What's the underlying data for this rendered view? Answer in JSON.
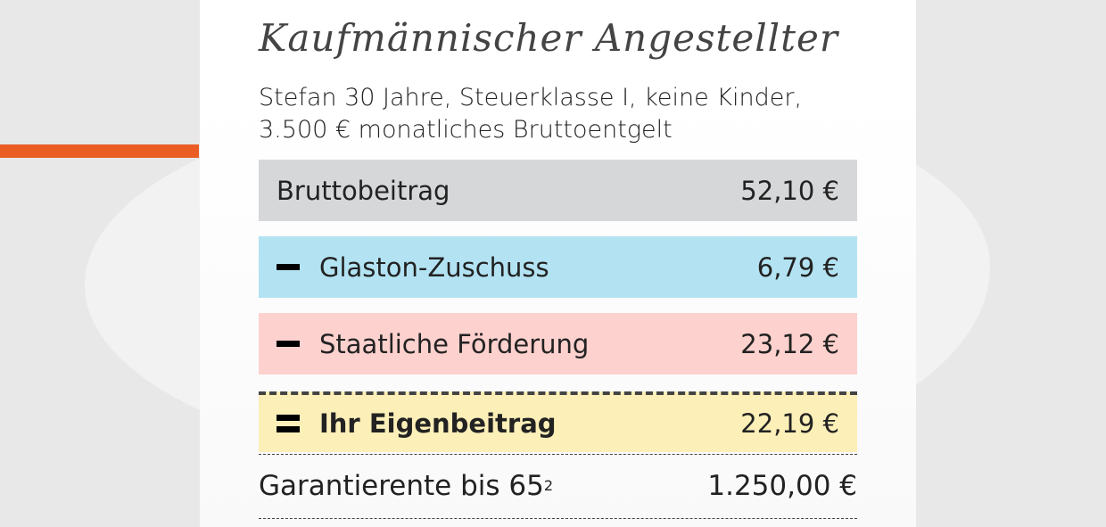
{
  "colors": {
    "accent": "#ea5e24",
    "brutto": "#d6d7d9",
    "zuschuss": "#b3e3f3",
    "foerderung": "#fdd1cd",
    "eigen": "#fcefb8"
  },
  "title": "Kaufmännischer Angestellter",
  "subtitle_line1": "Stefan 30 Jahre, Steuerklasse I, keine Kinder,",
  "subtitle_line2": "3.500 € monatliches Bruttoentgelt",
  "rows": [
    {
      "label": "Bruttobeitrag",
      "value": "52,10 €"
    },
    {
      "sign": "minus",
      "label": "Glaston-Zuschuss",
      "value": "6,79 €"
    },
    {
      "sign": "minus",
      "label": "Staatliche Förderung",
      "value": "23,12 €"
    },
    {
      "sign": "equals",
      "label": "Ihr Eigenbeitrag",
      "value": "22,19 €"
    }
  ],
  "garantie": {
    "label": "Garantierente bis 65",
    "footnote": "2",
    "value": "1.250,00 €"
  }
}
